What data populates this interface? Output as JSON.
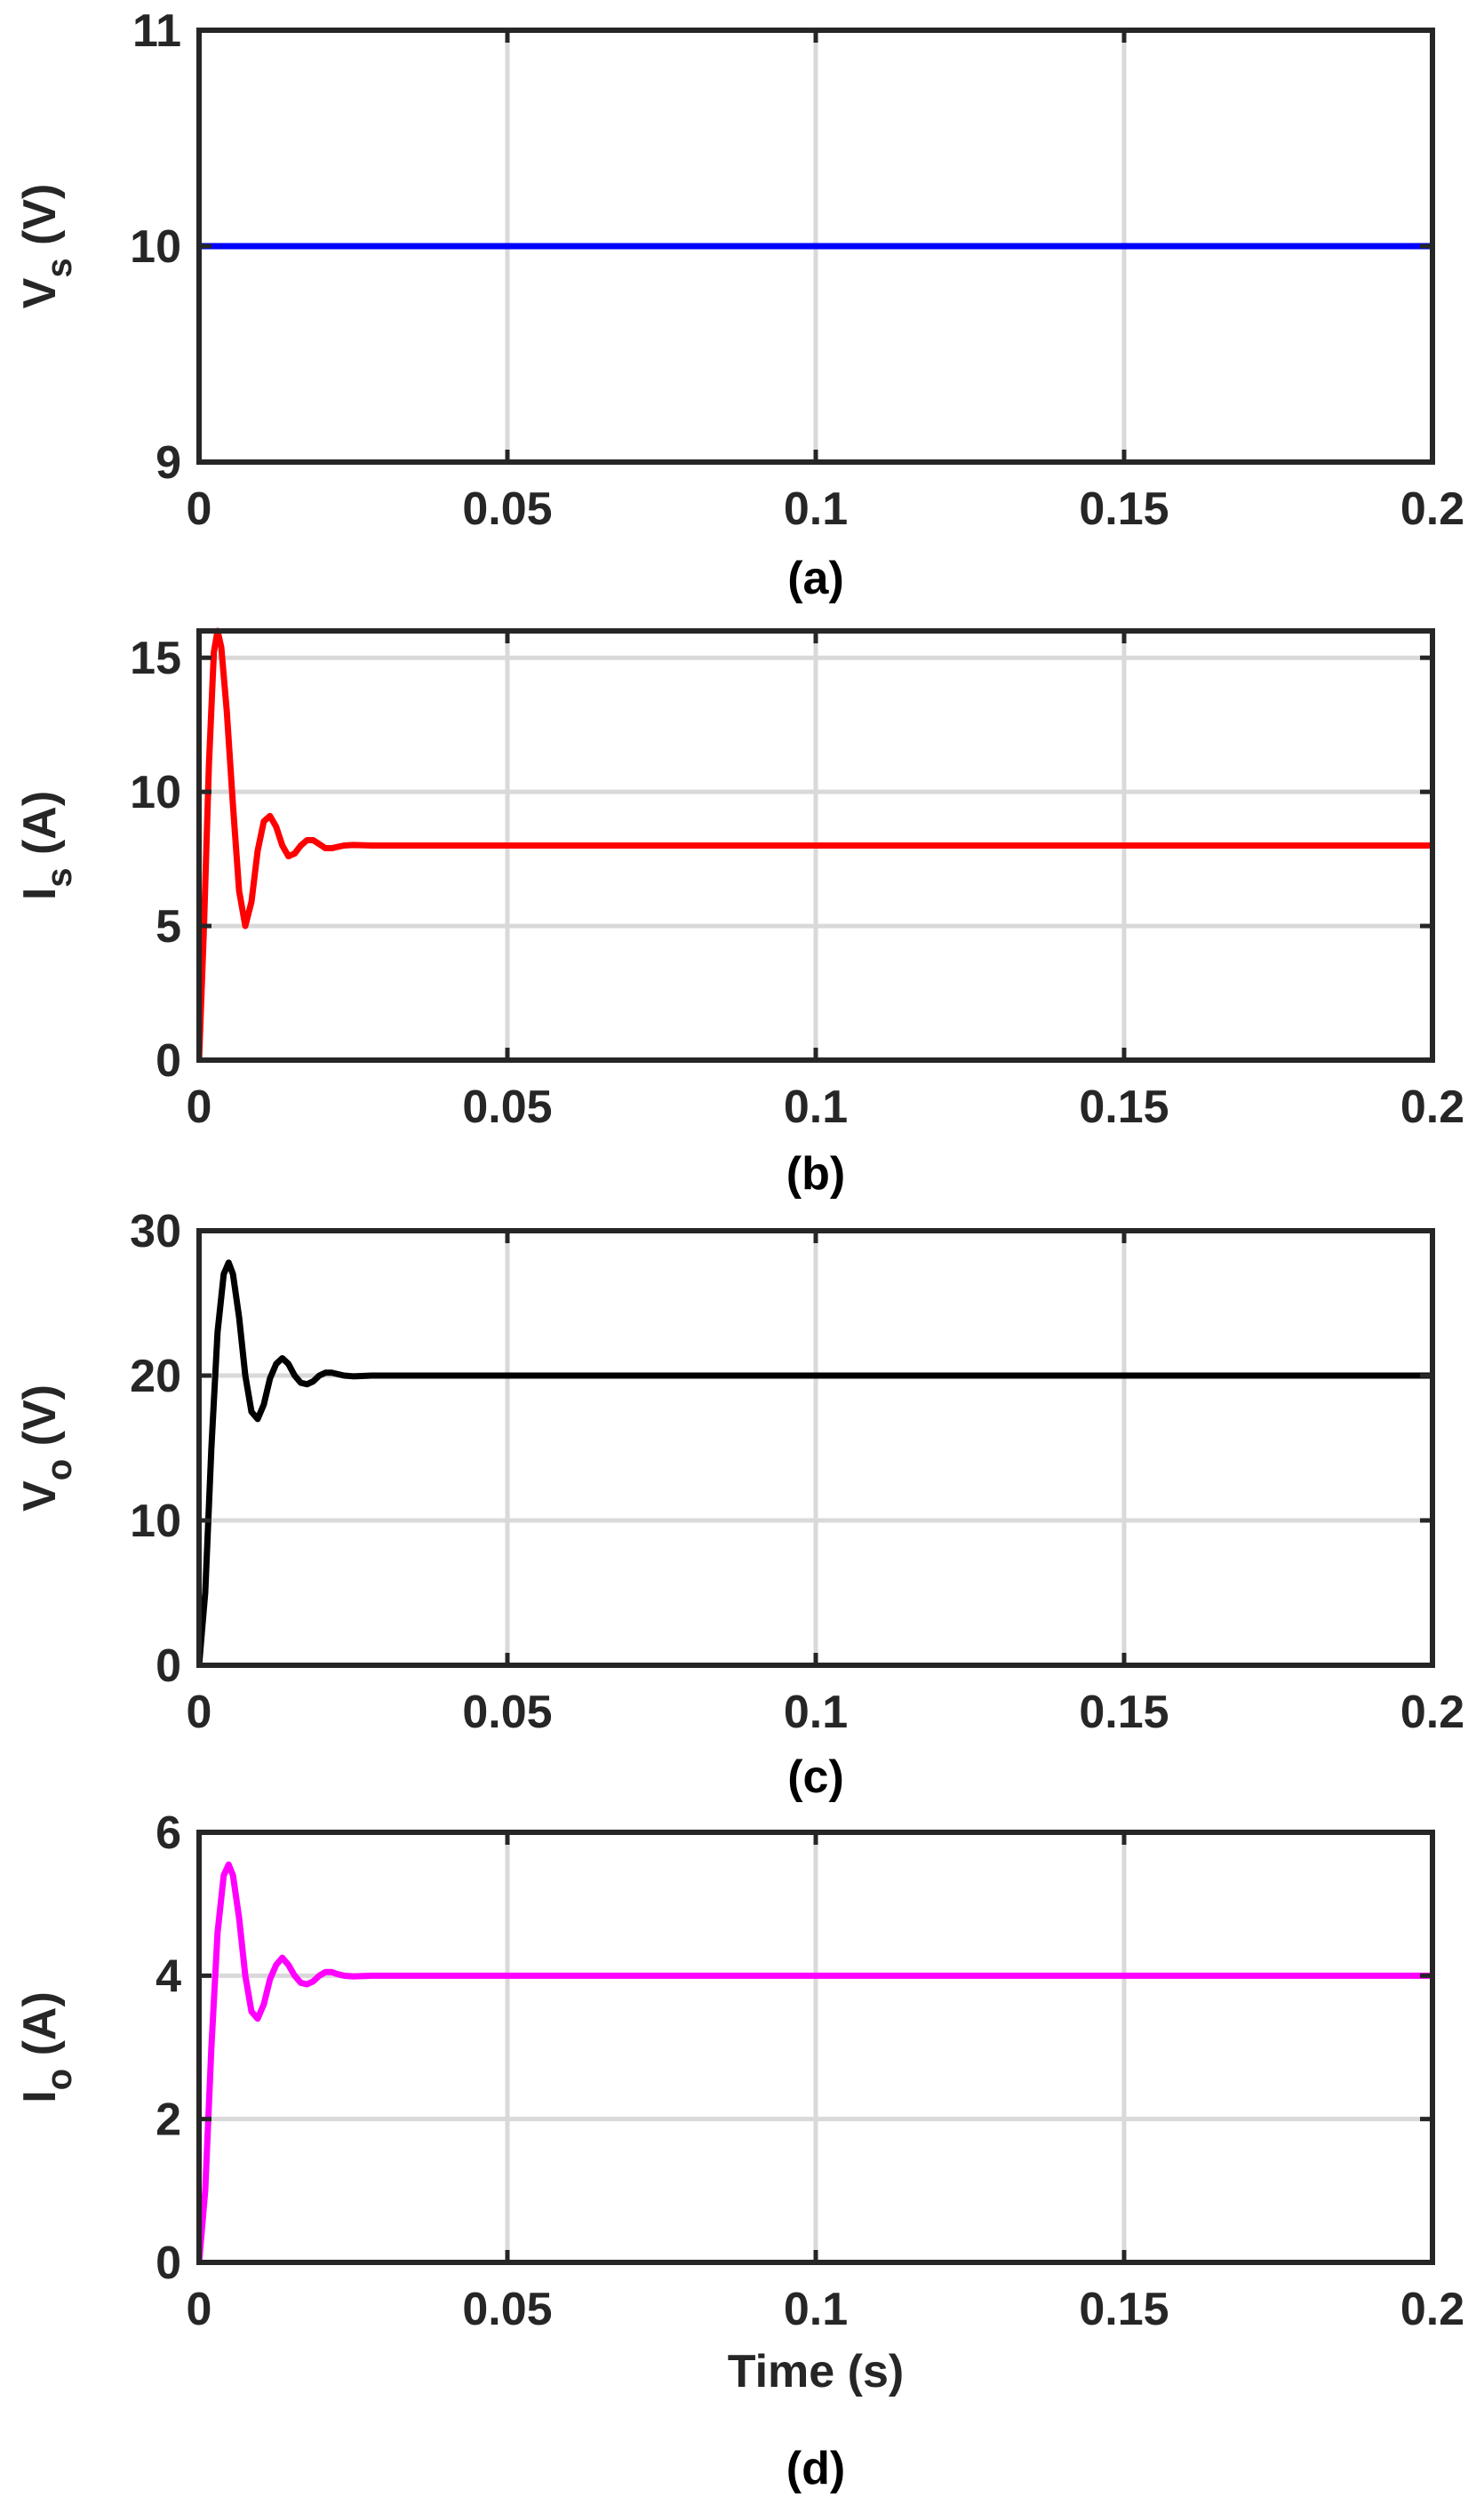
{
  "chart_data": [
    {
      "type": "line",
      "caption": "(a)",
      "ylabel": "V",
      "ylabel_subscript": "s",
      "ylabel_unit": " (V)",
      "xlabel": "",
      "xlim": [
        0,
        0.2
      ],
      "ylim": [
        9,
        11
      ],
      "xticks": [
        0,
        0.05,
        0.1,
        0.15,
        0.2
      ],
      "xtick_labels": [
        "0",
        "0.05",
        "0.1",
        "0.15",
        "0.2"
      ],
      "yticks": [
        9,
        10,
        11
      ],
      "ytick_labels": [
        "9",
        "10",
        "11"
      ],
      "grid": true,
      "series": [
        {
          "color": "#0000ff",
          "x": [
            0,
            0.2
          ],
          "y": [
            10,
            10
          ]
        }
      ]
    },
    {
      "type": "line",
      "caption": "(b)",
      "ylabel": "I",
      "ylabel_subscript": "s",
      "ylabel_unit": " (A)",
      "xlabel": "",
      "xlim": [
        0,
        0.2
      ],
      "ylim": [
        0,
        16
      ],
      "xticks": [
        0,
        0.05,
        0.1,
        0.15,
        0.2
      ],
      "xtick_labels": [
        "0",
        "0.05",
        "0.1",
        "0.15",
        "0.2"
      ],
      "yticks": [
        0,
        5,
        10,
        15
      ],
      "ytick_labels": [
        "0",
        "5",
        "10",
        "15"
      ],
      "grid": true,
      "series": [
        {
          "color": "#ff0000",
          "x": [
            0,
            0.0008,
            0.0016,
            0.0024,
            0.003,
            0.0036,
            0.0045,
            0.0055,
            0.0065,
            0.0075,
            0.0085,
            0.0095,
            0.0105,
            0.0115,
            0.0125,
            0.0135,
            0.0145,
            0.0155,
            0.0165,
            0.0175,
            0.0185,
            0.0195,
            0.0205,
            0.0215,
            0.0225,
            0.0235,
            0.025,
            0.028,
            0.032,
            0.2
          ],
          "y": [
            0,
            5,
            11,
            15.2,
            16,
            15.4,
            13,
            9.5,
            6.3,
            5,
            5.9,
            7.8,
            8.9,
            9.1,
            8.7,
            8.0,
            7.6,
            7.7,
            8.0,
            8.2,
            8.2,
            8.05,
            7.9,
            7.9,
            7.95,
            8.0,
            8.02,
            8.0,
            8.0,
            8.0
          ]
        }
      ]
    },
    {
      "type": "line",
      "caption": "(c)",
      "ylabel": "V",
      "ylabel_subscript": "o",
      "ylabel_unit": " (V)",
      "xlabel": "",
      "xlim": [
        0,
        0.2
      ],
      "ylim": [
        0,
        30
      ],
      "xticks": [
        0,
        0.05,
        0.1,
        0.15,
        0.2
      ],
      "xtick_labels": [
        "0",
        "0.05",
        "0.1",
        "0.15",
        "0.2"
      ],
      "yticks": [
        0,
        10,
        20,
        30
      ],
      "ytick_labels": [
        "0",
        "10",
        "20",
        "30"
      ],
      "grid": true,
      "series": [
        {
          "color": "#000000",
          "x": [
            0,
            0.001,
            0.002,
            0.003,
            0.004,
            0.0048,
            0.0055,
            0.0065,
            0.0075,
            0.0085,
            0.0095,
            0.0105,
            0.0115,
            0.0125,
            0.0135,
            0.0145,
            0.0155,
            0.0165,
            0.0175,
            0.0185,
            0.0195,
            0.0205,
            0.0215,
            0.0225,
            0.0235,
            0.025,
            0.028,
            0.032,
            0.2
          ],
          "y": [
            0,
            5,
            15,
            23,
            27,
            27.8,
            27,
            24,
            20,
            17.5,
            17,
            18,
            19.8,
            20.8,
            21.2,
            20.8,
            20,
            19.5,
            19.4,
            19.6,
            20.0,
            20.2,
            20.2,
            20.1,
            20.0,
            19.95,
            20.0,
            20.0,
            20.0
          ]
        }
      ]
    },
    {
      "type": "line",
      "caption": "(d)",
      "ylabel": "I",
      "ylabel_subscript": "o",
      "ylabel_unit": " (A)",
      "xlabel": "Time (s)",
      "xlim": [
        0,
        0.2
      ],
      "ylim": [
        0,
        6
      ],
      "xticks": [
        0,
        0.05,
        0.1,
        0.15,
        0.2
      ],
      "xtick_labels": [
        "0",
        "0.05",
        "0.1",
        "0.15",
        "0.2"
      ],
      "yticks": [
        0,
        2,
        4,
        6
      ],
      "ytick_labels": [
        "0",
        "2",
        "4",
        "6"
      ],
      "grid": true,
      "series": [
        {
          "color": "#ff00ff",
          "x": [
            0,
            0.001,
            0.002,
            0.003,
            0.004,
            0.0048,
            0.0055,
            0.0065,
            0.0075,
            0.0085,
            0.0095,
            0.0105,
            0.0115,
            0.0125,
            0.0135,
            0.0145,
            0.0155,
            0.0165,
            0.0175,
            0.0185,
            0.0195,
            0.0205,
            0.0215,
            0.0225,
            0.0235,
            0.025,
            0.028,
            0.032,
            0.2
          ],
          "y": [
            0,
            1.0,
            3.0,
            4.6,
            5.4,
            5.55,
            5.4,
            4.8,
            4.0,
            3.5,
            3.4,
            3.6,
            3.95,
            4.15,
            4.25,
            4.15,
            4.0,
            3.9,
            3.88,
            3.92,
            4.0,
            4.05,
            4.05,
            4.02,
            4.0,
            3.99,
            4.0,
            4.0,
            4.0
          ]
        }
      ]
    }
  ]
}
